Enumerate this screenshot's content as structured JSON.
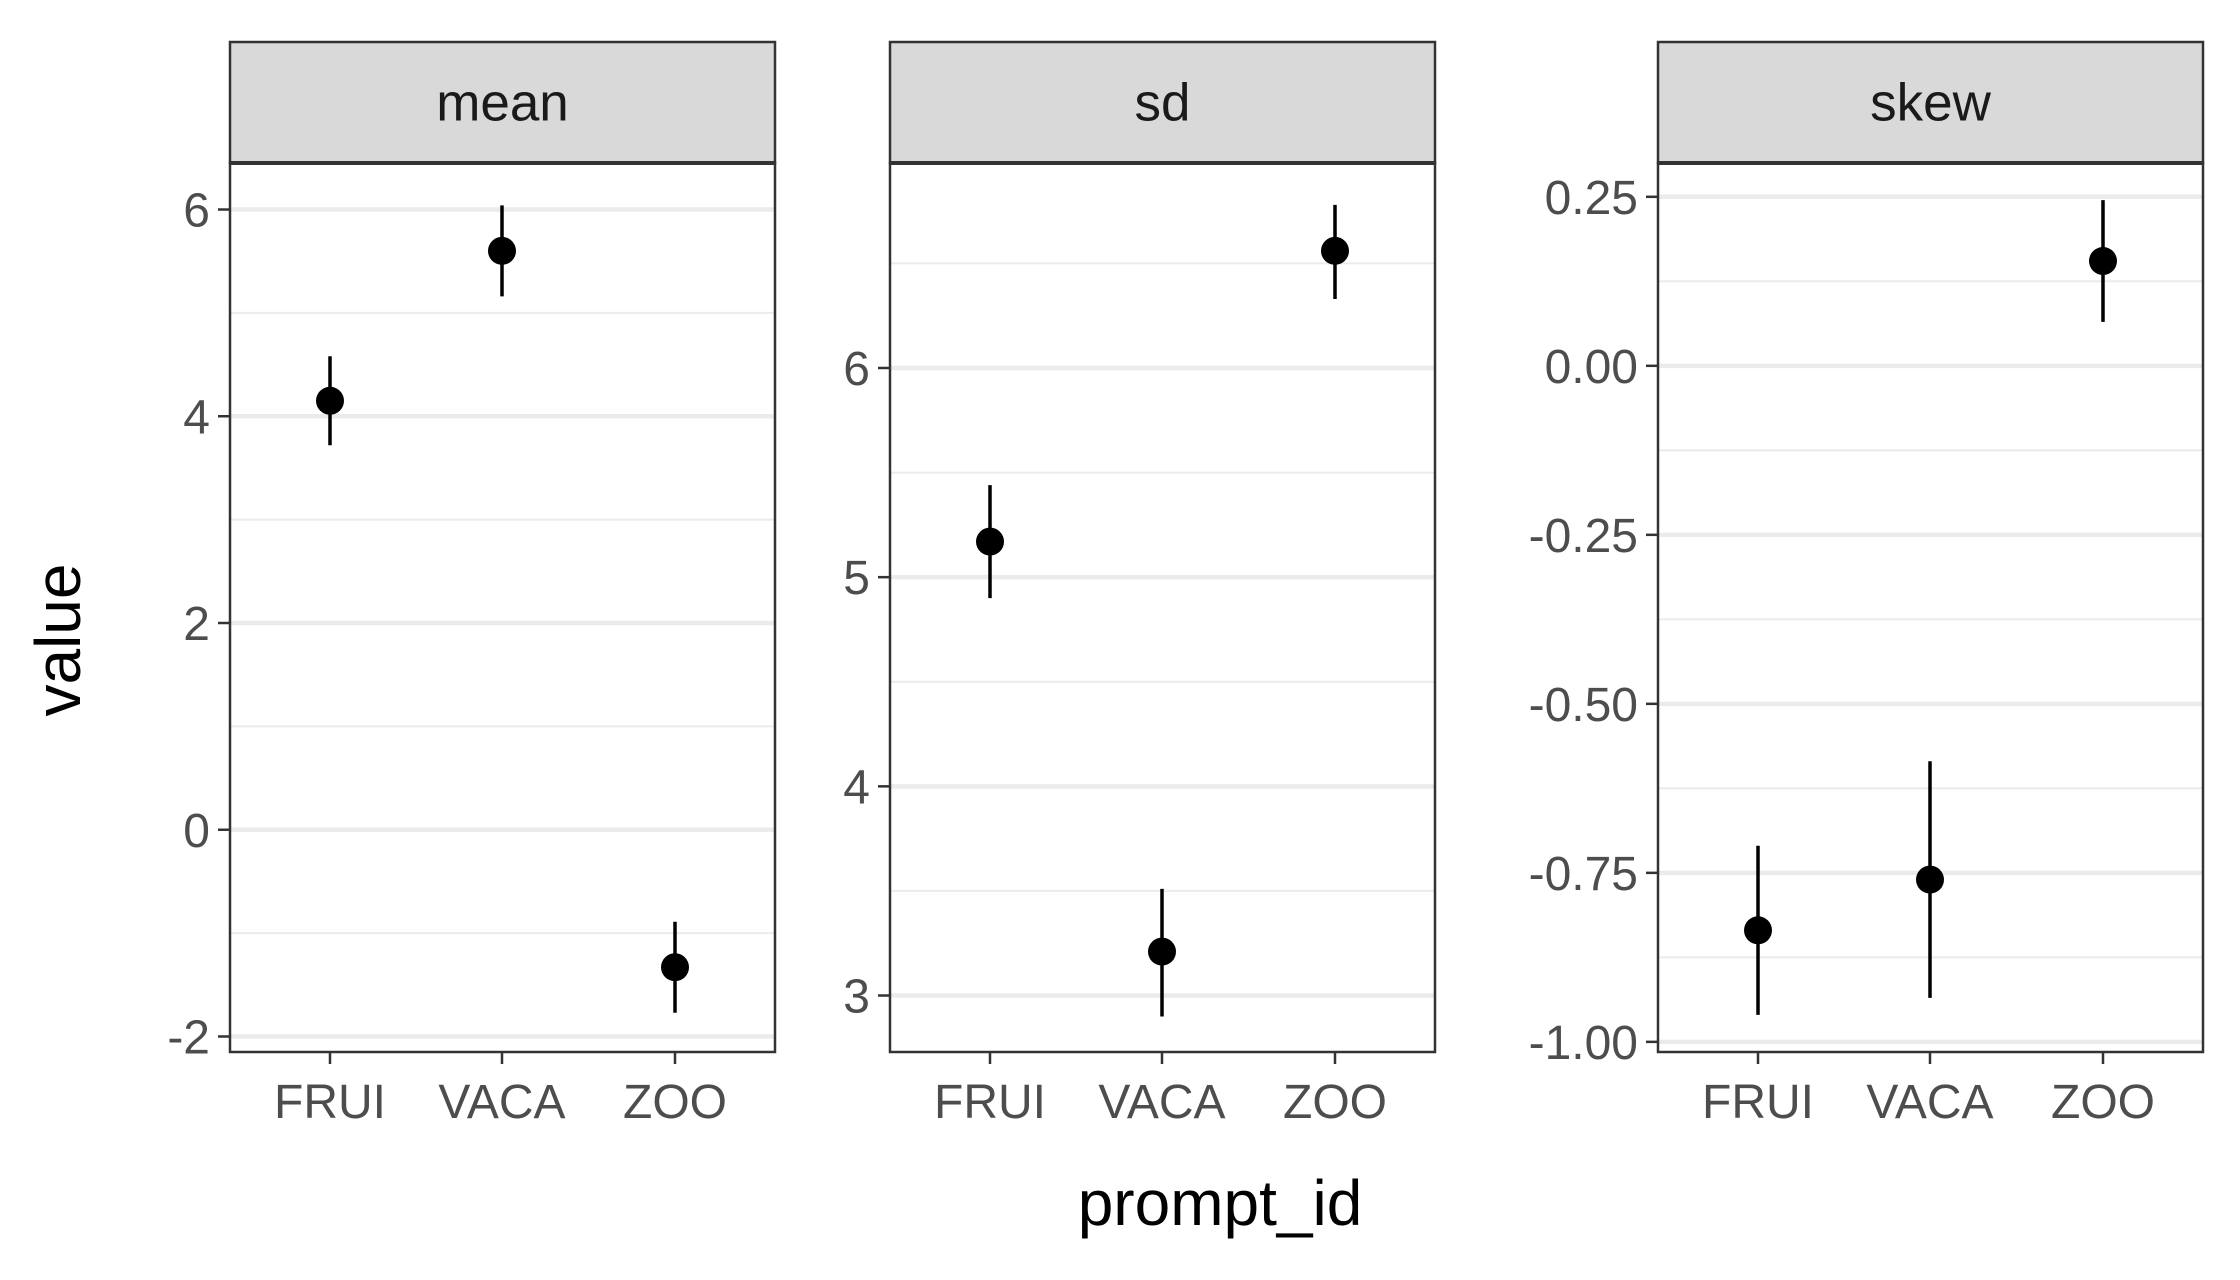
{
  "chart_data": {
    "type": "scatter",
    "xlabel": "prompt_id",
    "ylabel": "value",
    "categories": [
      "FRUI",
      "VACA",
      "ZOO"
    ],
    "grid": true,
    "panels": [
      {
        "strip": "mean",
        "ylim": [
          -2.15,
          6.45
        ],
        "yticks": [
          -2,
          0,
          2,
          4,
          6
        ],
        "ytick_labels": [
          "-2",
          "0",
          "2",
          "4",
          "6"
        ],
        "points": [
          {
            "x": "FRUI",
            "y": 4.15,
            "lo": 3.72,
            "hi": 4.58
          },
          {
            "x": "VACA",
            "y": 5.6,
            "lo": 5.16,
            "hi": 6.04
          },
          {
            "x": "ZOO",
            "y": -1.33,
            "lo": -1.77,
            "hi": -0.89
          }
        ]
      },
      {
        "strip": "sd",
        "ylim": [
          2.73,
          6.98
        ],
        "yticks": [
          3,
          4,
          5,
          6
        ],
        "ytick_labels": [
          "3",
          "4",
          "5",
          "6"
        ],
        "points": [
          {
            "x": "FRUI",
            "y": 5.17,
            "lo": 4.9,
            "hi": 5.44
          },
          {
            "x": "VACA",
            "y": 3.21,
            "lo": 2.9,
            "hi": 3.51
          },
          {
            "x": "ZOO",
            "y": 6.56,
            "lo": 6.33,
            "hi": 6.78
          }
        ]
      },
      {
        "strip": "skew",
        "ylim": [
          -1.015,
          0.3
        ],
        "yticks": [
          -1.0,
          -0.75,
          -0.5,
          -0.25,
          0.0,
          0.25
        ],
        "ytick_labels": [
          "-1.00",
          "-0.75",
          "-0.50",
          "-0.25",
          "0.00",
          "0.25"
        ],
        "points": [
          {
            "x": "FRUI",
            "y": -0.835,
            "lo": -0.96,
            "hi": -0.71
          },
          {
            "x": "VACA",
            "y": -0.76,
            "lo": -0.935,
            "hi": -0.585
          },
          {
            "x": "ZOO",
            "y": 0.155,
            "lo": 0.065,
            "hi": 0.245
          }
        ]
      }
    ]
  }
}
